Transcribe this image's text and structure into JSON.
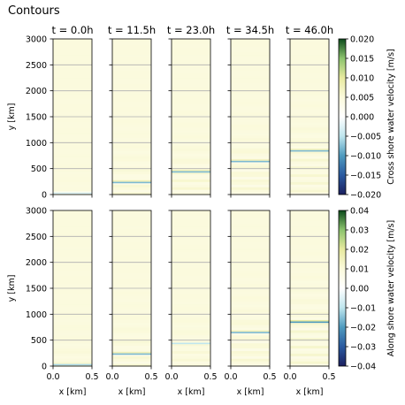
{
  "figure": {
    "title": "Contours"
  },
  "chart_data": {
    "type": "heatmap",
    "panel_titles": [
      "t = 0.0h",
      "t = 11.5h",
      "t = 23.0h",
      "t = 34.5h",
      "t = 46.0h"
    ],
    "times_h": [
      0.0,
      11.5,
      23.0,
      34.5,
      46.0
    ],
    "xlabel": "x [km]",
    "ylabel": "y [km]",
    "xlim": [
      0.0,
      0.5
    ],
    "ylim": [
      0,
      3000
    ],
    "xticks": [
      "0.0",
      "0.5"
    ],
    "yticks": [
      "0",
      "500",
      "1000",
      "1500",
      "2000",
      "2500",
      "3000"
    ],
    "grid": true,
    "rows": [
      {
        "quantity": "cross-shore",
        "colorbar_label": "Cross shore water velocity [m/s]",
        "clim": [
          -0.02,
          0.02
        ],
        "colorbar_ticks": [
          "0.020",
          "0.015",
          "0.010",
          "0.005",
          "0.000",
          "−0.005",
          "−0.010",
          "−0.015",
          "−0.020"
        ],
        "front_y_km": [
          30,
          235,
          440,
          640,
          845
        ],
        "front_amplitude": [
          0.003,
          0.008,
          0.008,
          0.008,
          0.008
        ]
      },
      {
        "quantity": "along-shore",
        "colorbar_label": "Along shore water velocity [m/s]",
        "clim": [
          -0.04,
          0.04
        ],
        "colorbar_ticks": [
          "0.04",
          "0.03",
          "0.02",
          "0.01",
          "0.00",
          "−0.01",
          "−0.02",
          "−0.03",
          "−0.04"
        ],
        "front_y_km": [
          30,
          235,
          440,
          650,
          850
        ],
        "front_amplitude": [
          0.012,
          0.016,
          0.01,
          0.016,
          0.02
        ]
      }
    ],
    "colormap": [
      "#1b1f5e",
      "#2a5aa0",
      "#4f9bbf",
      "#bfe6ee",
      "#ffffff",
      "#fbfadc",
      "#e8eaa0",
      "#8cc46e",
      "#0c4a1c"
    ]
  }
}
